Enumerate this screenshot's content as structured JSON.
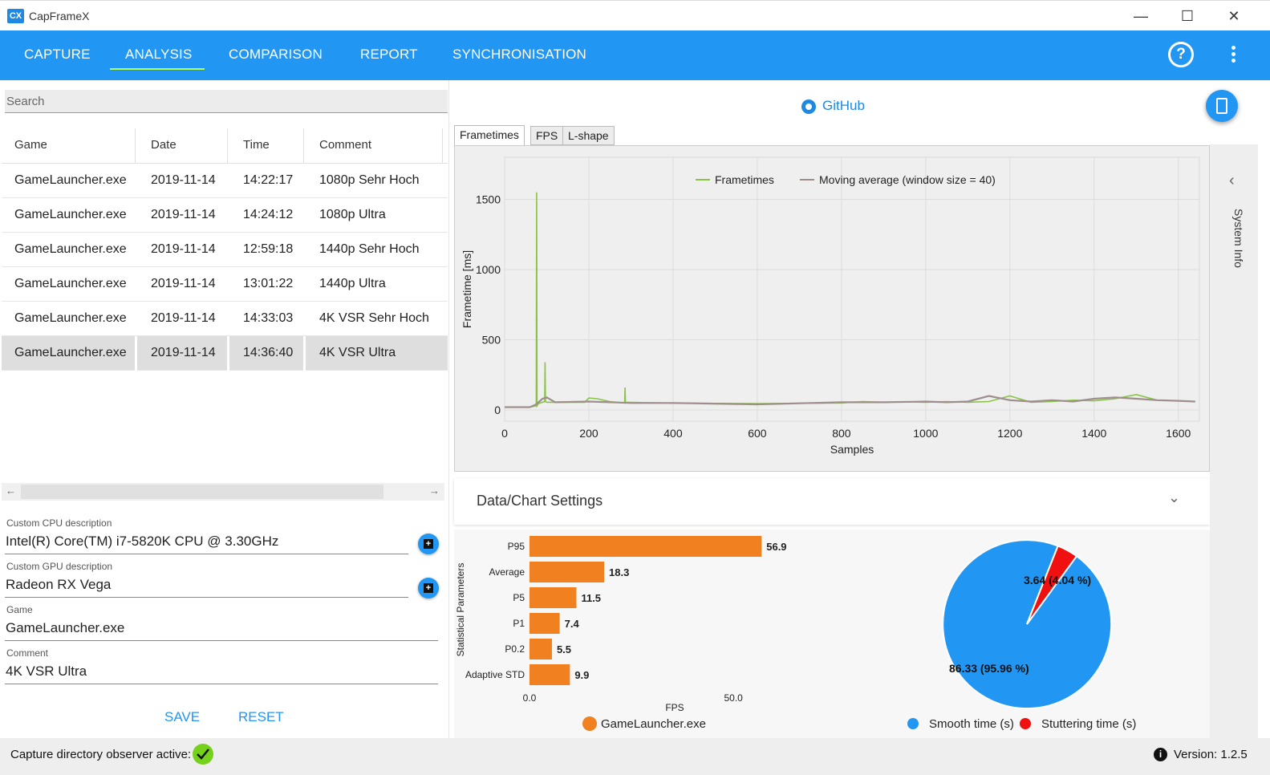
{
  "window": {
    "logo": "CX",
    "title": "CapFrameX",
    "minimize": "—",
    "maximize": "☐",
    "close": "✕"
  },
  "nav": {
    "tabs": [
      "CAPTURE",
      "ANALYSIS",
      "COMPARISON",
      "REPORT",
      "SYNCHRONISATION"
    ],
    "active": "ANALYSIS",
    "help": "?"
  },
  "search": {
    "placeholder": "Search"
  },
  "records": {
    "columns": [
      "Game",
      "Date",
      "Time",
      "Comment"
    ],
    "rows": [
      [
        "GameLauncher.exe",
        "2019-11-14",
        "14:22:17",
        "1080p Sehr Hoch"
      ],
      [
        "GameLauncher.exe",
        "2019-11-14",
        "14:24:12",
        "1080p Ultra"
      ],
      [
        "GameLauncher.exe",
        "2019-11-14",
        "12:59:18",
        "1440p Sehr Hoch"
      ],
      [
        "GameLauncher.exe",
        "2019-11-14",
        "13:01:22",
        "1440p Ultra"
      ],
      [
        "GameLauncher.exe",
        "2019-11-14",
        "14:33:03",
        "4K VSR Sehr Hoch"
      ],
      [
        "GameLauncher.exe",
        "2019-11-14",
        "14:36:40",
        "4K VSR Ultra"
      ]
    ],
    "selected_index": 5
  },
  "scroll": {
    "left": "←",
    "right": "→"
  },
  "details": {
    "cpu_label": "Custom CPU description",
    "cpu_value": "Intel(R) Core(TM) i7-5820K CPU @ 3.30GHz",
    "gpu_label": "Custom GPU description",
    "gpu_value": "Radeon RX Vega",
    "game_label": "Game",
    "game_value": "GameLauncher.exe",
    "comment_label": "Comment",
    "comment_value": "4K VSR Ultra",
    "add_icon": "+",
    "save": "SAVE",
    "reset": "RESET"
  },
  "github": "GitHub",
  "chart_tabs": [
    "Frametimes",
    "FPS",
    "L-shape"
  ],
  "settings": {
    "title": "Data/Chart Settings",
    "chevron": "⌄"
  },
  "sysinfo": {
    "label": "System Info",
    "arrow": "‹"
  },
  "status": {
    "observer": "Capture directory observer active:",
    "version": "Version:  1.2.5",
    "info": "i"
  },
  "colors": {
    "accent": "#2196f3",
    "frametime": "#8bc34a",
    "moving_average": "#9e8e8e",
    "bar": "#f08020",
    "smooth": "#2196f3",
    "stutter": "#f01010"
  },
  "chart_data": [
    {
      "type": "line",
      "legend": [
        "Frametimes",
        "Moving average (window size = 40)"
      ],
      "legend_placement": "top-center",
      "ylabel": "Frametime [ms]",
      "xlabel": "Samples",
      "xlim": [
        0,
        1650
      ],
      "ylim": [
        -80,
        1800
      ],
      "xticks": [
        0,
        200,
        400,
        600,
        800,
        1000,
        1200,
        1400,
        1600
      ],
      "yticks": [
        0,
        500,
        1000,
        1500
      ],
      "grid": true,
      "series": [
        {
          "name": "Frametimes",
          "x": [
            0,
            60,
            75,
            76,
            77,
            80,
            95,
            96,
            97,
            100,
            190,
            200,
            220,
            235,
            250,
            285,
            286,
            287,
            290,
            400,
            600,
            800,
            850,
            900,
            950,
            1000,
            1050,
            1100,
            1150,
            1200,
            1250,
            1300,
            1350,
            1400,
            1450,
            1500,
            1550,
            1600,
            1640
          ],
          "y": [
            20,
            20,
            30,
            1550,
            30,
            45,
            60,
            340,
            60,
            55,
            55,
            85,
            80,
            70,
            60,
            50,
            160,
            50,
            55,
            48,
            45,
            50,
            60,
            55,
            58,
            55,
            60,
            55,
            60,
            100,
            55,
            60,
            70,
            65,
            80,
            110,
            70,
            65,
            60
          ]
        },
        {
          "name": "Moving average (window size = 40)",
          "x": [
            0,
            60,
            75,
            90,
            100,
            120,
            200,
            250,
            300,
            400,
            600,
            800,
            900,
            1000,
            1050,
            1100,
            1150,
            1200,
            1250,
            1300,
            1350,
            1400,
            1450,
            1500,
            1550,
            1600,
            1640
          ],
          "y": [
            20,
            20,
            40,
            80,
            90,
            55,
            60,
            55,
            50,
            50,
            40,
            55,
            55,
            60,
            55,
            60,
            100,
            70,
            60,
            70,
            60,
            80,
            90,
            80,
            70,
            65,
            60
          ]
        }
      ]
    },
    {
      "type": "bar",
      "orientation": "horizontal",
      "ylabel": "Statistical Parameters",
      "xlabel": "FPS",
      "xlim": [
        0,
        60
      ],
      "xticks": [
        "0.0",
        "50.0"
      ],
      "categories": [
        "P95",
        "Average",
        "P5",
        "P1",
        "P0.2",
        "Adaptive STD"
      ],
      "series": [
        {
          "name": "GameLauncher.exe",
          "values": [
            56.9,
            18.3,
            11.5,
            7.4,
            5.5,
            9.9
          ]
        }
      ]
    },
    {
      "type": "pie",
      "series": [
        {
          "name": "Smooth time (s)",
          "value": 86.33,
          "label": "86.33 (95.96 %)"
        },
        {
          "name": "Stuttering time (s)",
          "value": 3.64,
          "label": "3.64 (4.04 %)"
        }
      ]
    }
  ]
}
